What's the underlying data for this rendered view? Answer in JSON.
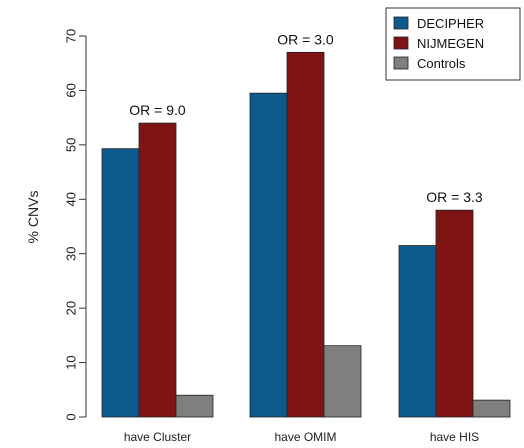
{
  "chart_data": {
    "type": "bar",
    "categories": [
      "have Cluster",
      "have OMIM",
      "have HIS"
    ],
    "series": [
      {
        "name": "DECIPHER",
        "values": [
          49.3,
          59.5,
          31.5
        ],
        "color": "#0e5a8c"
      },
      {
        "name": "NIJMEGEN",
        "values": [
          54.0,
          67.0,
          38.0
        ],
        "color": "#7e1414"
      },
      {
        "name": "Controls",
        "values": [
          4.0,
          13.1,
          3.1
        ],
        "color": "#7f7f7f"
      }
    ],
    "ylabel": "% CNVs",
    "xlabel": "",
    "ylim": [
      0,
      70
    ],
    "yticks": [
      0,
      10,
      20,
      30,
      40,
      50,
      60,
      70
    ],
    "grid": false,
    "legend_position": "top-right",
    "annotations": [
      {
        "text": "OR = 9.0",
        "category_index": 0
      },
      {
        "text": "OR = 3.0",
        "category_index": 1
      },
      {
        "text": "OR = 3.3",
        "category_index": 2
      }
    ]
  }
}
